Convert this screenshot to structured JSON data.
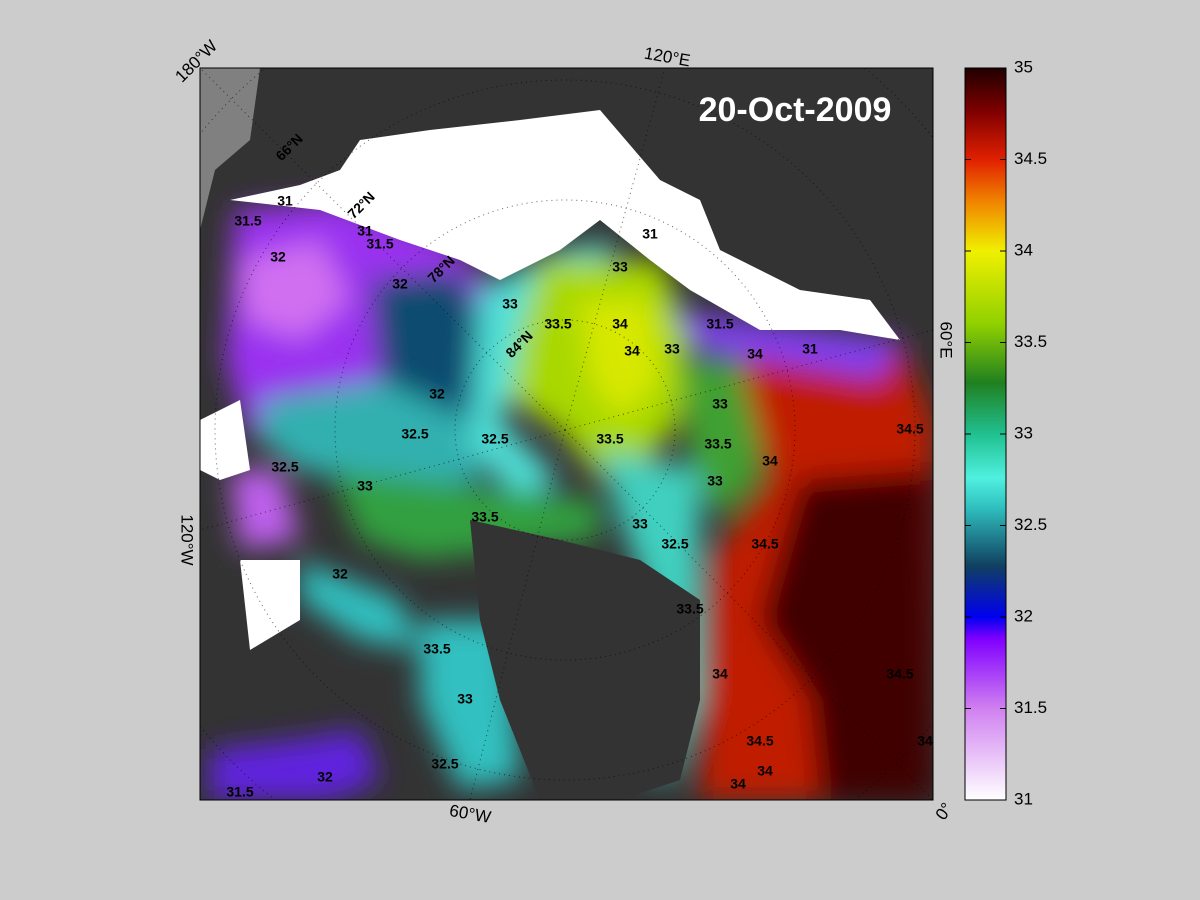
{
  "title": "20-Oct-2009",
  "longitude_labels": [
    "180°W",
    "120°E",
    "60°E",
    "0°",
    "60°W",
    "120°W"
  ],
  "latitude_labels": [
    "66°N",
    "72°N",
    "78°N",
    "84°N"
  ],
  "contour_labels": [
    "31.5",
    "31",
    "31",
    "31.5",
    "32",
    "32",
    "33",
    "33.5",
    "34",
    "34",
    "33",
    "31",
    "31.5",
    "33",
    "34",
    "32",
    "32.5",
    "32.5",
    "33",
    "33.5",
    "33.5",
    "34",
    "34.5",
    "33",
    "32.5",
    "33",
    "33.5",
    "33",
    "32.5",
    "34.5",
    "33.5",
    "32",
    "33.5",
    "33",
    "34",
    "34.5",
    "34.5",
    "34",
    "34",
    "32.5",
    "32",
    "31.5",
    "34",
    "31"
  ],
  "colorbar": {
    "lim": [
      31,
      35
    ],
    "ticks": [
      31,
      31.5,
      32,
      32.5,
      33,
      33.5,
      34,
      34.5,
      35
    ]
  }
}
